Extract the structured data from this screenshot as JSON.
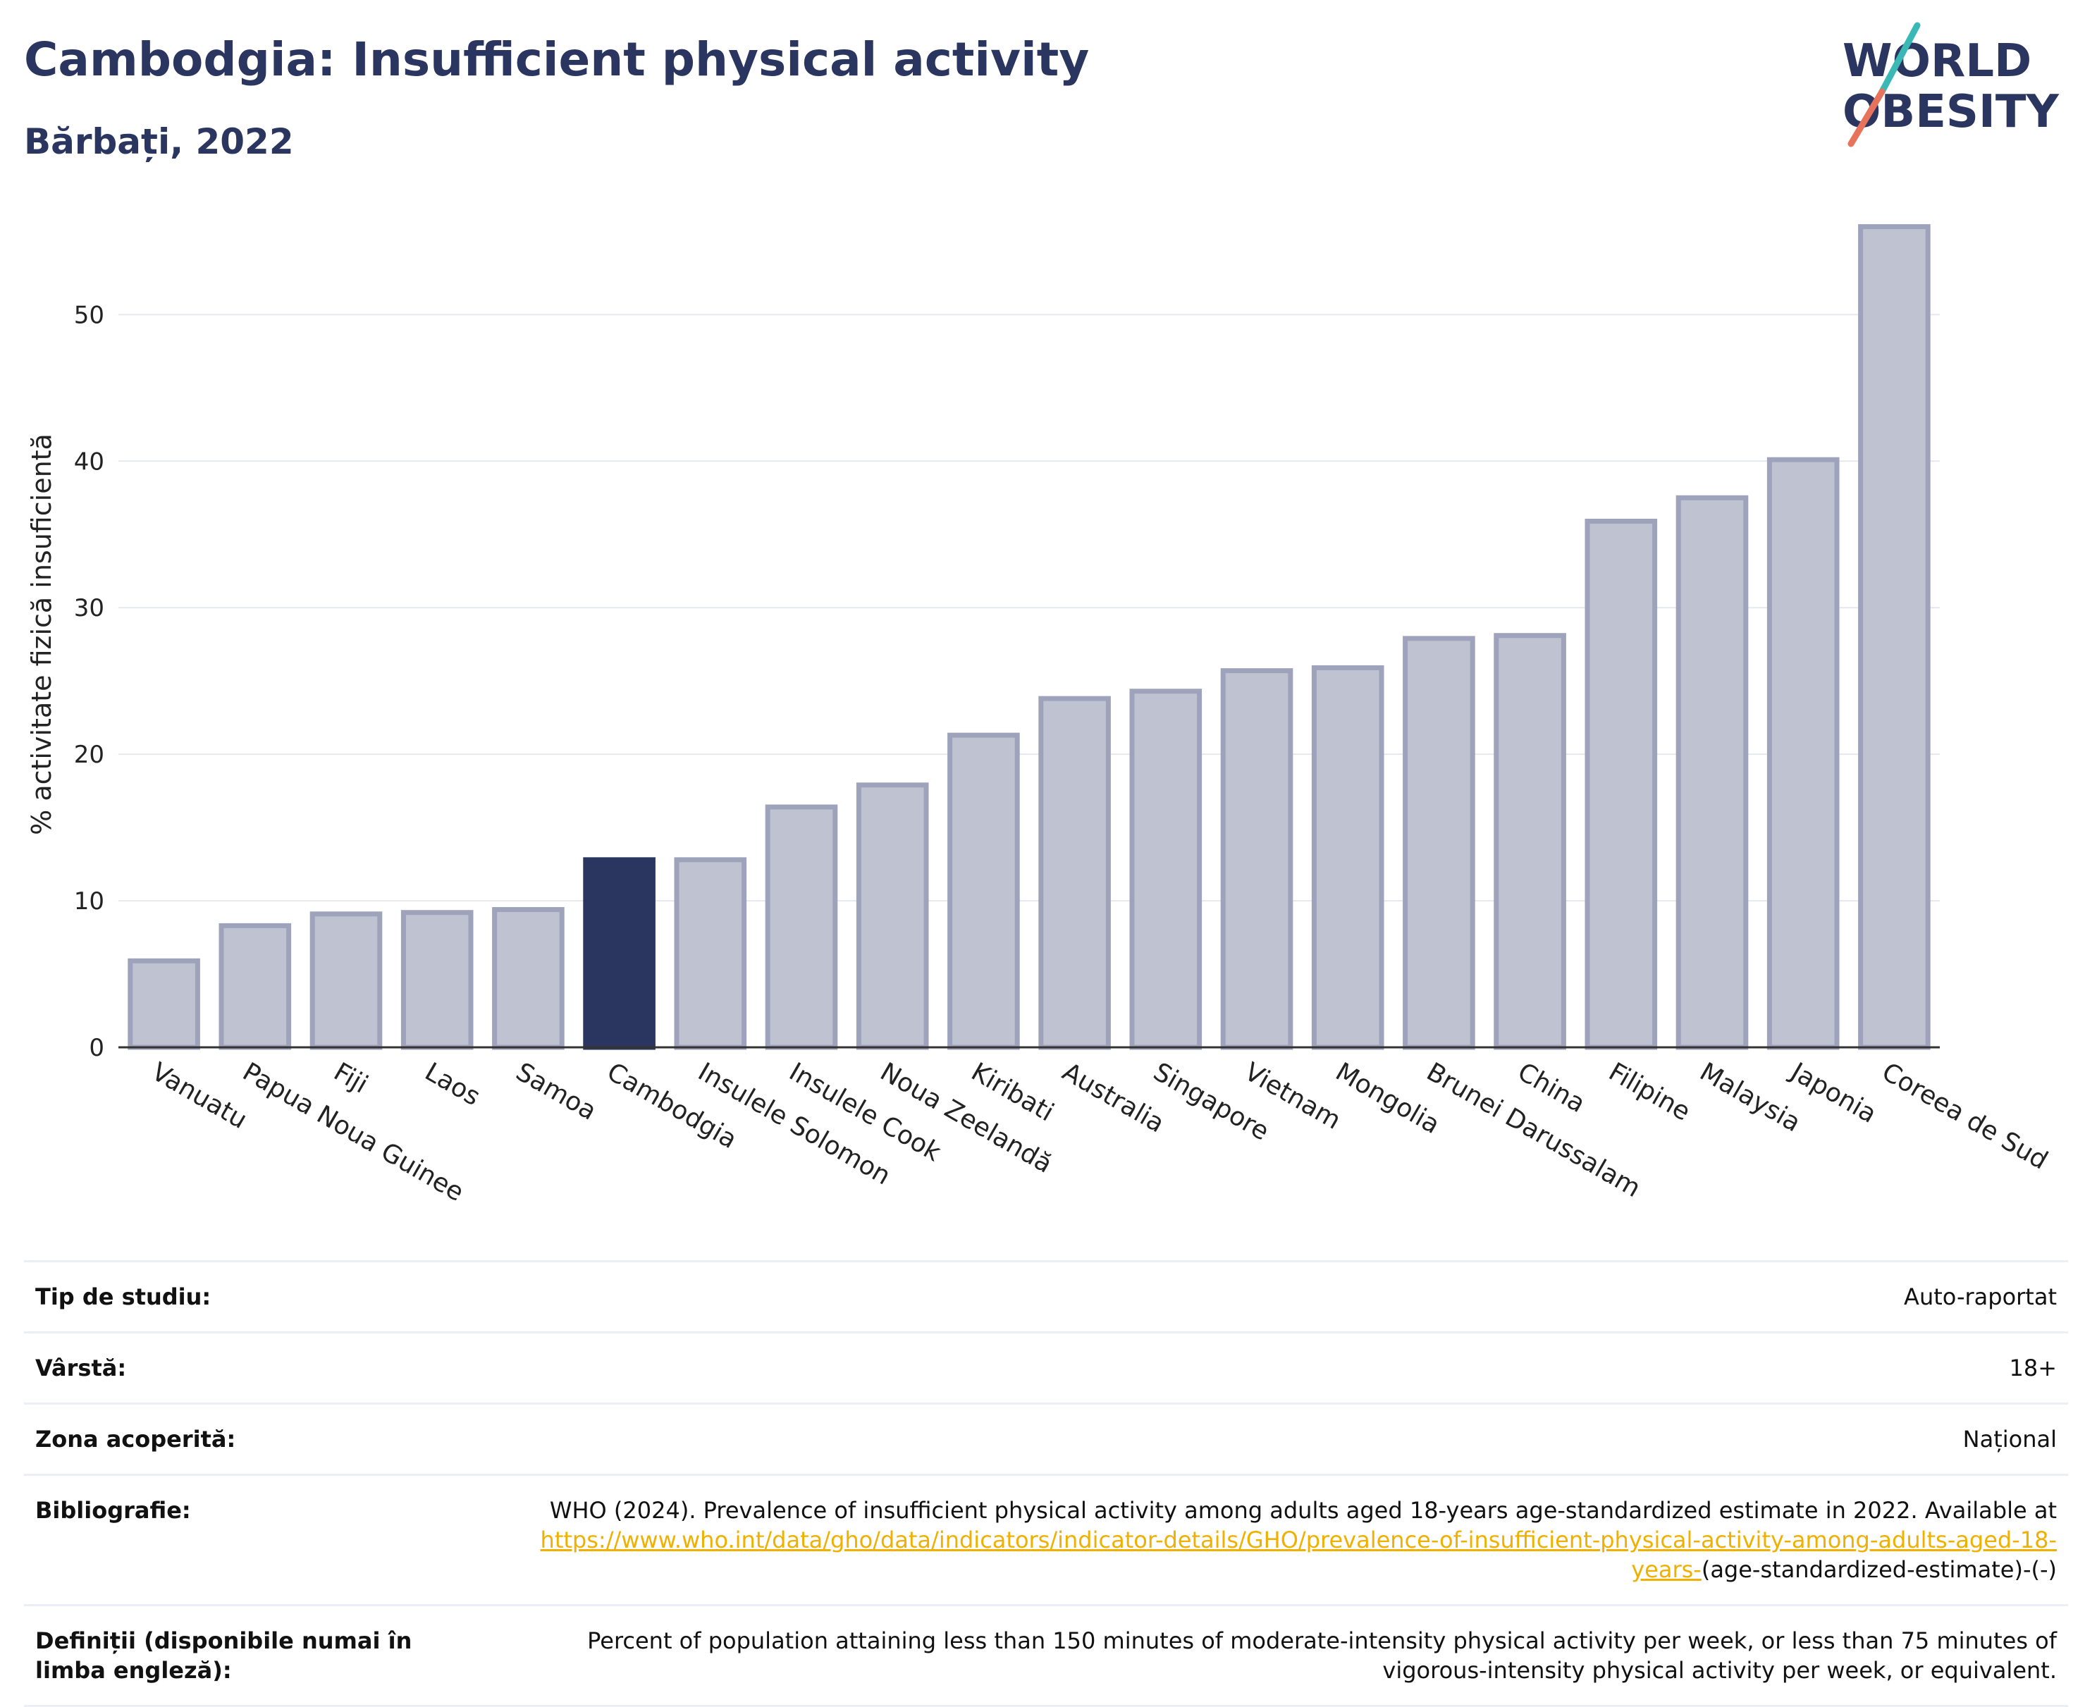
{
  "header": {
    "title": "Cambodgia: Insufficient physical activity",
    "subtitle": "Bărbați, 2022",
    "logo_line1": "WORLD",
    "logo_line2": "OBESITY"
  },
  "colors": {
    "highlight": "#2a3560",
    "bar": "#bfc2d0",
    "bar_stroke": "#9ea3bb",
    "accent_teal": "#3ab8b5",
    "accent_red": "#e8735c"
  },
  "chart_data": {
    "type": "bar",
    "categories": [
      "Vanuatu",
      "Papua Noua Guinee",
      "Fiji",
      "Laos",
      "Samoa",
      "Cambodgia",
      "Insulele Solomon",
      "Insulele Cook",
      "Noua Zeelandă",
      "Kiribati",
      "Australia",
      "Singapore",
      "Vietnam",
      "Mongolia",
      "Brunei Darussalam",
      "China",
      "Filipine",
      "Malaysia",
      "Japonia",
      "Coreea de Sud"
    ],
    "values": [
      5.9,
      8.3,
      9.1,
      9.2,
      9.4,
      12.8,
      12.8,
      16.4,
      17.9,
      21.3,
      23.8,
      24.3,
      25.7,
      25.9,
      27.9,
      28.1,
      35.9,
      37.5,
      40.1,
      56.0
    ],
    "highlight": "Cambodgia",
    "ylabel": "% activitate fizică insuficientă",
    "yticks": [
      0,
      10,
      20,
      30,
      40,
      50
    ],
    "ylim": [
      0,
      58
    ],
    "grid": true
  },
  "info": [
    {
      "label": "Tip de studiu:",
      "value": "Auto-raportat"
    },
    {
      "label": "Vârstă:",
      "value": "18+"
    },
    {
      "label": "Zona acoperită:",
      "value": "Național"
    }
  ],
  "bibliography": {
    "label": "Bibliografie:",
    "text": "WHO (2024). Prevalence of insufficient physical activity among adults aged 18-years age-standardized estimate in 2022. Available at",
    "link": "https://www.who.int/data/gho/data/indicators/indicator-details/GHO/prevalence-of-insufficient-physical-activity-among-adults-aged-18-years-",
    "suffix": "(age-standardized-estimate)-(-)"
  },
  "definitions": {
    "label": "Definiții (disponibile numai în limba engleză):",
    "text": "Percent of population attaining less than 150 minutes of moderate-intensity physical activity per week, or less than 75 minutes of vigorous-intensity physical activity per week, or equivalent."
  }
}
